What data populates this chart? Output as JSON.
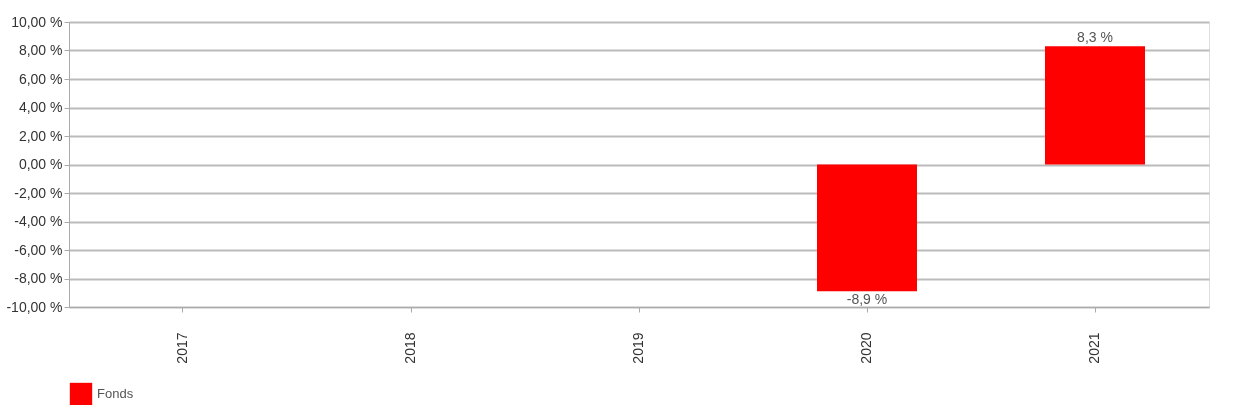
{
  "chart_data": {
    "type": "bar",
    "categories": [
      "2017",
      "2018",
      "2019",
      "2020",
      "2021"
    ],
    "series": [
      {
        "name": "Fonds",
        "color": "#ff0000",
        "values": [
          null,
          null,
          null,
          -8.9,
          8.3
        ],
        "value_labels": [
          null,
          null,
          null,
          "-8,9 %",
          "8,3 %"
        ]
      }
    ],
    "ylim": [
      -10,
      10
    ],
    "yticks": [
      {
        "value": -10,
        "label": "-10,00 %"
      },
      {
        "value": -8,
        "label": "-8,00 %"
      },
      {
        "value": -6,
        "label": "-6,00 %"
      },
      {
        "value": -4,
        "label": "-4,00 %"
      },
      {
        "value": -2,
        "label": "-2,00 %"
      },
      {
        "value": 0,
        "label": "0,00 %"
      },
      {
        "value": 2,
        "label": "2,00 %"
      },
      {
        "value": 4,
        "label": "4,00 %"
      },
      {
        "value": 6,
        "label": "6,00 %"
      },
      {
        "value": 8,
        "label": "8,00 %"
      },
      {
        "value": 10,
        "label": "10,00 %"
      }
    ],
    "grid": "y",
    "legend": "bottom"
  }
}
